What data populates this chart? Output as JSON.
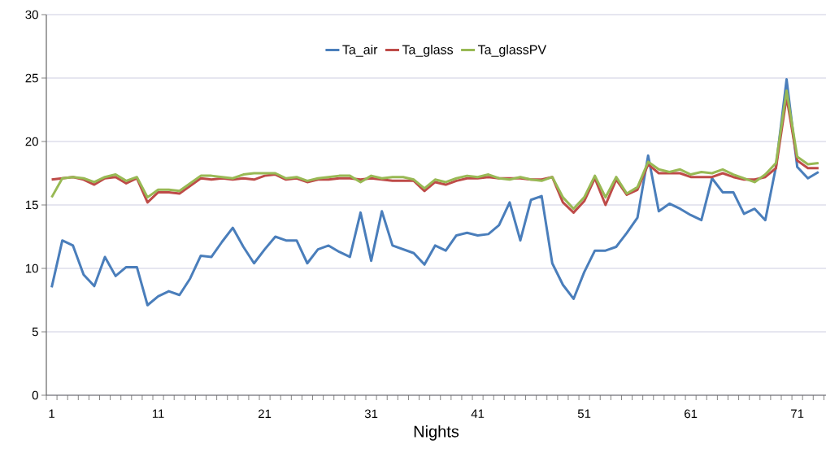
{
  "chart_data": {
    "type": "line",
    "xlabel": "Nights",
    "categories": [
      "1",
      null,
      null,
      null,
      null,
      null,
      null,
      null,
      null,
      null,
      "11",
      null,
      null,
      null,
      null,
      null,
      null,
      null,
      null,
      null,
      "21",
      null,
      null,
      null,
      null,
      null,
      null,
      null,
      null,
      null,
      "31",
      null,
      null,
      null,
      null,
      null,
      null,
      null,
      null,
      null,
      "41",
      null,
      null,
      null,
      null,
      null,
      null,
      null,
      null,
      null,
      "51",
      null,
      null,
      null,
      null,
      null,
      null,
      null,
      null,
      null,
      "61",
      null,
      null,
      null,
      null,
      null,
      null,
      null,
      null,
      null,
      "71",
      null,
      null
    ],
    "series": [
      {
        "name": "Ta_air",
        "color": "#4a7ebb",
        "values": [
          8.5,
          12.2,
          11.8,
          9.5,
          8.6,
          10.9,
          9.4,
          10.1,
          10.1,
          7.1,
          7.8,
          8.2,
          7.9,
          9.2,
          11.0,
          10.9,
          12.1,
          13.2,
          11.7,
          10.4,
          11.5,
          12.5,
          12.2,
          12.2,
          10.4,
          11.5,
          11.8,
          11.3,
          10.9,
          14.4,
          10.6,
          14.5,
          11.8,
          11.5,
          11.2,
          10.3,
          11.8,
          11.4,
          12.6,
          12.8,
          12.6,
          12.7,
          13.4,
          15.2,
          12.2,
          15.4,
          15.7,
          10.4,
          8.7,
          7.6,
          9.7,
          11.4,
          11.4,
          11.7,
          12.8,
          14.0,
          18.9,
          14.5,
          15.1,
          14.7,
          14.2,
          13.8,
          17.1,
          16.0,
          16.0,
          14.3,
          14.7,
          13.8,
          18.0,
          24.9,
          18.0,
          17.1,
          17.6
        ]
      },
      {
        "name": "Ta_glass",
        "color": "#be4b48",
        "values": [
          17.0,
          17.1,
          17.2,
          17.0,
          16.6,
          17.1,
          17.2,
          16.7,
          17.1,
          15.2,
          16.0,
          16.0,
          15.9,
          16.5,
          17.1,
          17.0,
          17.1,
          17.0,
          17.1,
          17.0,
          17.3,
          17.4,
          17.0,
          17.1,
          16.8,
          17.0,
          17.0,
          17.1,
          17.1,
          17.0,
          17.1,
          17.0,
          16.9,
          16.9,
          16.9,
          16.1,
          16.8,
          16.6,
          16.9,
          17.1,
          17.1,
          17.2,
          17.1,
          17.1,
          17.1,
          17.0,
          17.0,
          17.2,
          15.2,
          14.4,
          15.3,
          17.1,
          15.0,
          17.0,
          15.8,
          16.2,
          18.2,
          17.5,
          17.5,
          17.5,
          17.2,
          17.2,
          17.2,
          17.5,
          17.2,
          17.0,
          17.0,
          17.2,
          17.9,
          23.5,
          18.5,
          17.9,
          17.9
        ]
      },
      {
        "name": "Ta_glassPV",
        "color": "#98b954",
        "values": [
          15.6,
          17.1,
          17.2,
          17.1,
          16.8,
          17.2,
          17.4,
          16.9,
          17.2,
          15.6,
          16.2,
          16.2,
          16.1,
          16.7,
          17.3,
          17.3,
          17.2,
          17.1,
          17.4,
          17.5,
          17.5,
          17.5,
          17.1,
          17.2,
          16.9,
          17.1,
          17.2,
          17.3,
          17.3,
          16.8,
          17.3,
          17.1,
          17.2,
          17.2,
          17.0,
          16.3,
          17.0,
          16.8,
          17.1,
          17.3,
          17.2,
          17.4,
          17.1,
          17.0,
          17.2,
          17.0,
          16.9,
          17.2,
          15.6,
          14.7,
          15.6,
          17.3,
          15.6,
          17.2,
          15.9,
          16.4,
          18.4,
          17.8,
          17.6,
          17.8,
          17.4,
          17.6,
          17.5,
          17.8,
          17.4,
          17.1,
          16.8,
          17.4,
          18.3,
          24.0,
          18.8,
          18.2,
          18.3
        ]
      }
    ],
    "ylim": [
      0,
      30
    ],
    "yticks": [
      0,
      5,
      10,
      15,
      20,
      25,
      30
    ],
    "grid": "y",
    "legend": "top",
    "marker": "none",
    "line_style": "solid"
  }
}
